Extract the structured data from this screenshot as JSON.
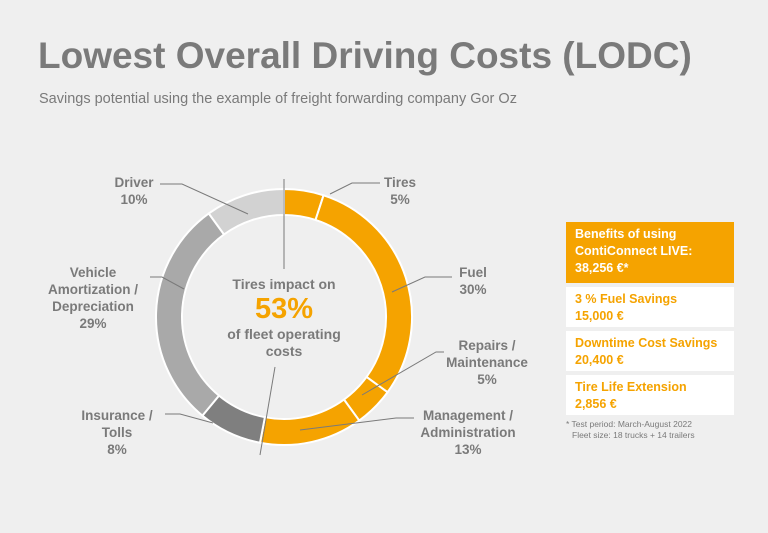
{
  "header": {
    "title": "Lowest Overall Driving Costs (LODC)",
    "subtitle": "Savings potential using the example of freight forwarding company Gor Oz"
  },
  "chart_data": {
    "type": "pie",
    "donut": true,
    "unit": "%",
    "categories": [
      "Tires",
      "Fuel",
      "Repairs / Maintenance",
      "Management / Administration",
      "Insurance / Tolls",
      "Vehicle Amortization / Depreciation",
      "Driver"
    ],
    "values": [
      5,
      30,
      5,
      13,
      8,
      29,
      10
    ],
    "value_labels": [
      "5%",
      "30%",
      "5%",
      "13%",
      "8%",
      "29%",
      "10%"
    ],
    "colors": [
      "#f5a300",
      "#f5a300",
      "#f5a300",
      "#f5a300",
      "#7f7f7f",
      "#a9a9a9",
      "#d2d2d2"
    ],
    "center": {
      "line1": "Tires impact on",
      "value": "53%",
      "line2": "of fleet operating",
      "line3": "costs"
    }
  },
  "labels": {
    "tires": [
      "Tires"
    ],
    "fuel": [
      "Fuel"
    ],
    "repairs": [
      "Repairs /",
      "Maintenance"
    ],
    "management": [
      "Management /",
      "Administration"
    ],
    "insurance": [
      "Insurance /",
      "Tolls"
    ],
    "vehicle": [
      "Vehicle",
      "Amortization /",
      "Depreciation"
    ],
    "driver": [
      "Driver"
    ]
  },
  "benefits": {
    "headline": [
      "Benefits of using",
      "ContiConnect LIVE:",
      "38,256 €*"
    ],
    "items": [
      {
        "label": "3 % Fuel Savings",
        "value": "15,000 €"
      },
      {
        "label": "Downtime Cost Savings",
        "value": "20,400 €"
      },
      {
        "label": "Tire Life Extension",
        "value": "2,856 €"
      }
    ],
    "footnote": [
      "* Test period: March-August 2022",
      "Fleet size: 18 trucks + 14 trailers"
    ]
  }
}
